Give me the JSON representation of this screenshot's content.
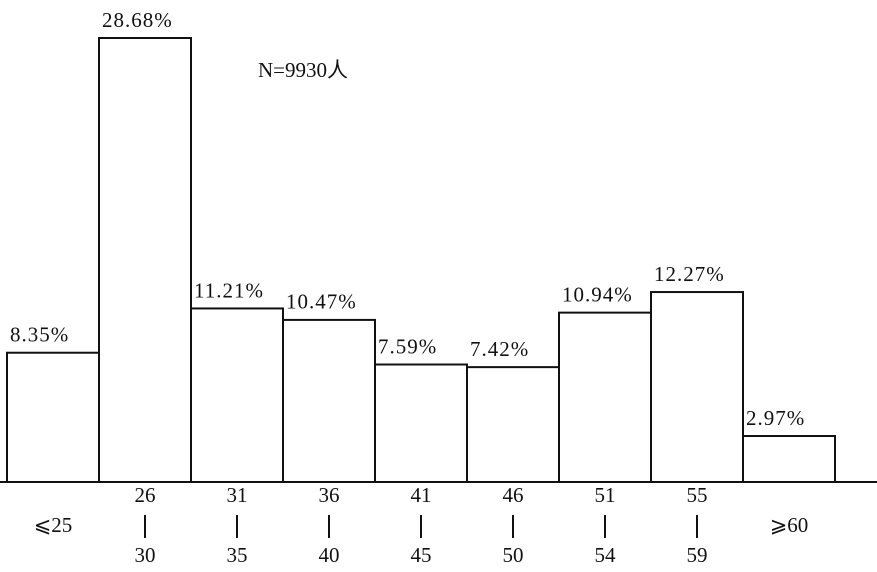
{
  "chart_data": {
    "type": "bar",
    "annotation": "N=9930人",
    "categories": [
      [
        "⩽25"
      ],
      [
        "26",
        "30"
      ],
      [
        "31",
        "35"
      ],
      [
        "36",
        "40"
      ],
      [
        "41",
        "45"
      ],
      [
        "46",
        "50"
      ],
      [
        "51",
        "54"
      ],
      [
        "55",
        "59"
      ],
      [
        "⩾60"
      ]
    ],
    "values": [
      8.35,
      28.68,
      11.21,
      10.47,
      7.59,
      7.42,
      10.94,
      12.27,
      2.97
    ],
    "value_labels": [
      "8.35%",
      "28.68%",
      "11.21%",
      "10.47%",
      "7.59%",
      "7.42%",
      "10.94%",
      "12.27%",
      "2.97%"
    ],
    "color": "#ffffff"
  }
}
